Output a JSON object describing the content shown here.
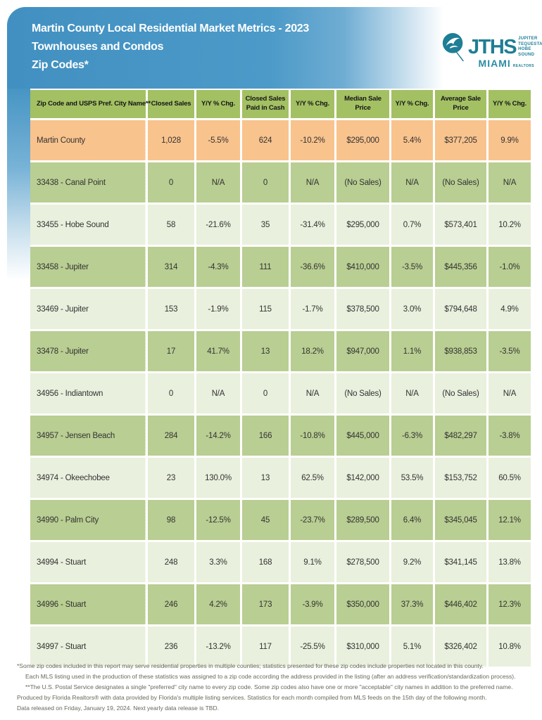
{
  "header": {
    "title_line1": "Martin County Local Residential Market Metrics - 2023",
    "title_line2": "Townhouses and Condos",
    "title_line3": "Zip Codes*",
    "logo": {
      "acronym": "JTHS",
      "stack_line1": "JUPITER",
      "stack_line2": "TEQUESTA",
      "stack_line3": "HOBE SOUND",
      "miami": "MIAMI",
      "realtors": "REALTORS"
    }
  },
  "table": {
    "columns": [
      "Zip Code and USPS Pref. City Name**",
      "Closed Sales",
      "Y/Y % Chg.",
      "Closed Sales Paid in Cash",
      "Y/Y % Chg.",
      "Median Sale Price",
      "Y/Y % Chg.",
      "Average Sale Price",
      "Y/Y % Chg."
    ],
    "rows": [
      {
        "name": "Martin County",
        "highlight": true,
        "values": [
          "1,028",
          "-5.5%",
          "624",
          "-10.2%",
          "$295,000",
          "5.4%",
          "$377,205",
          "9.9%"
        ]
      },
      {
        "name": "33438 - Canal Point",
        "highlight": false,
        "values": [
          "0",
          "N/A",
          "0",
          "N/A",
          "(No Sales)",
          "N/A",
          "(No Sales)",
          "N/A"
        ]
      },
      {
        "name": "33455 - Hobe Sound",
        "highlight": false,
        "values": [
          "58",
          "-21.6%",
          "35",
          "-31.4%",
          "$295,000",
          "0.7%",
          "$573,401",
          "10.2%"
        ]
      },
      {
        "name": "33458 - Jupiter",
        "highlight": false,
        "values": [
          "314",
          "-4.3%",
          "111",
          "-36.6%",
          "$410,000",
          "-3.5%",
          "$445,356",
          "-1.0%"
        ]
      },
      {
        "name": "33469 - Jupiter",
        "highlight": false,
        "values": [
          "153",
          "-1.9%",
          "115",
          "-1.7%",
          "$378,500",
          "3.0%",
          "$794,648",
          "4.9%"
        ]
      },
      {
        "name": "33478 - Jupiter",
        "highlight": false,
        "values": [
          "17",
          "41.7%",
          "13",
          "18.2%",
          "$947,000",
          "1.1%",
          "$938,853",
          "-3.5%"
        ]
      },
      {
        "name": "34956 - Indiantown",
        "highlight": false,
        "values": [
          "0",
          "N/A",
          "0",
          "N/A",
          "(No Sales)",
          "N/A",
          "(No Sales)",
          "N/A"
        ]
      },
      {
        "name": "34957 - Jensen Beach",
        "highlight": false,
        "values": [
          "284",
          "-14.2%",
          "166",
          "-10.8%",
          "$445,000",
          "-6.3%",
          "$482,297",
          "-3.8%"
        ]
      },
      {
        "name": "34974 - Okeechobee",
        "highlight": false,
        "values": [
          "23",
          "130.0%",
          "13",
          "62.5%",
          "$142,000",
          "53.5%",
          "$153,752",
          "60.5%"
        ]
      },
      {
        "name": "34990 - Palm City",
        "highlight": false,
        "values": [
          "98",
          "-12.5%",
          "45",
          "-23.7%",
          "$289,500",
          "6.4%",
          "$345,045",
          "12.1%"
        ]
      },
      {
        "name": "34994 - Stuart",
        "highlight": false,
        "values": [
          "248",
          "3.3%",
          "168",
          "9.1%",
          "$278,500",
          "9.2%",
          "$341,145",
          "13.8%"
        ]
      },
      {
        "name": "34996 - Stuart",
        "highlight": false,
        "values": [
          "246",
          "4.2%",
          "173",
          "-3.9%",
          "$350,000",
          "37.3%",
          "$446,402",
          "12.3%"
        ]
      },
      {
        "name": "34997 - Stuart",
        "highlight": false,
        "values": [
          "236",
          "-13.2%",
          "117",
          "-25.5%",
          "$310,000",
          "5.1%",
          "$326,402",
          "10.8%"
        ]
      }
    ]
  },
  "footnotes": [
    "*Some zip codes included in this report may serve residential properties in multiple counties; statistics presented for these zip codes include properties not located in this county.",
    "Each MLS listing used in the production of these statistics was assigned to a zip code according the address provided in the listing (after an address verification/standardization process).",
    "**The U.S. Postal Service designates a single \"preferred\" city name to every zip code. Some zip codes also have one or more \"acceptable\" city names in addition to the preferred name.",
    "Produced by Florida Realtors® with data provided by Florida's multiple listing services. Statistics for each month compiled from MLS feeds on the 15th day of the following month.",
    "Data released on Friday, January 19, 2024. Next yearly data release is TBD."
  ],
  "colors": {
    "banner_blue": "#4190c1",
    "header_green": "#a3c063",
    "row_green": "#b9ce92",
    "row_pale": "#e9f0dd",
    "highlight_orange": "#f9c38d",
    "logo_teal": "#1e7e95"
  }
}
